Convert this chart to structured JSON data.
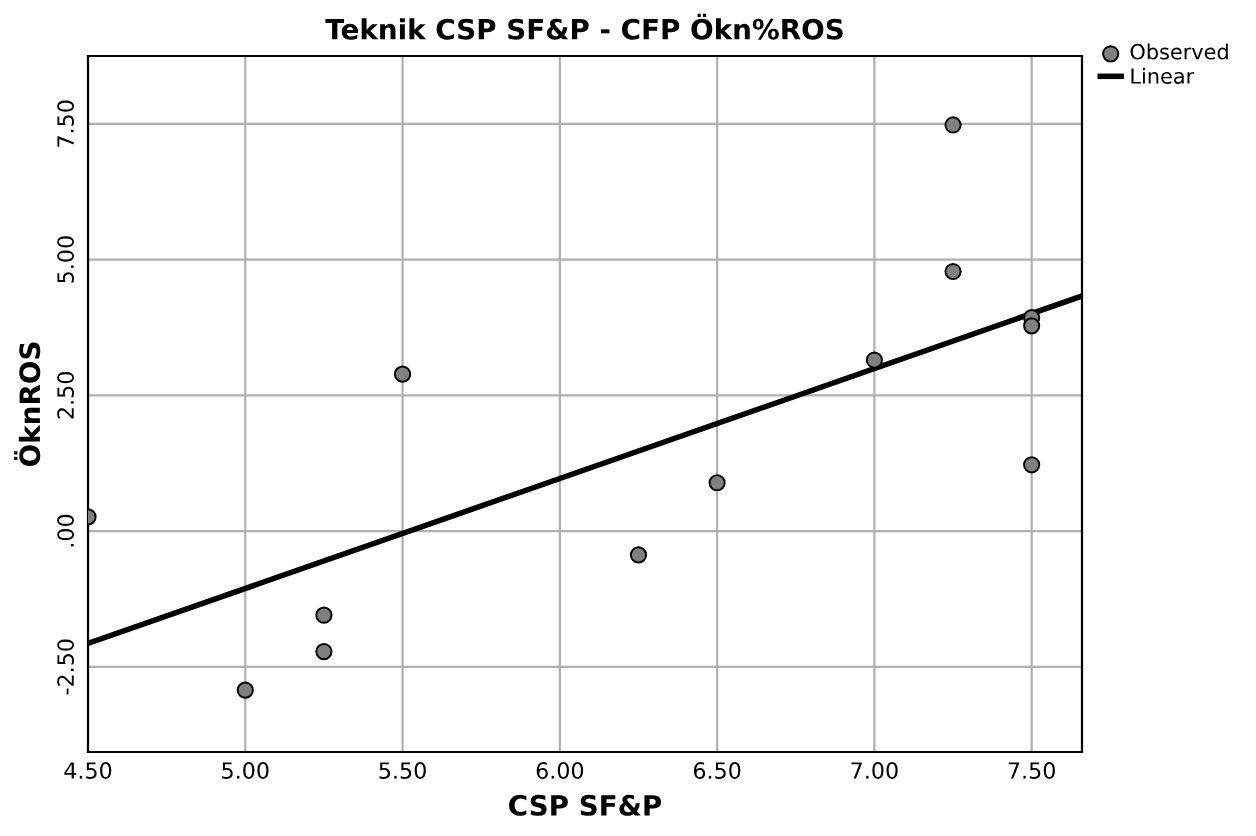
{
  "chart_data": {
    "type": "scatter",
    "title": "Teknik CSP SF&P - CFP Ökn%ROS",
    "xlabel": "CSP SF&P",
    "ylabel": "ÖknROS",
    "xlim": [
      4.5,
      7.66
    ],
    "ylim": [
      -4.07,
      8.75
    ],
    "xticks": [
      {
        "value": 4.5,
        "label": "4.50"
      },
      {
        "value": 5.0,
        "label": "5.00"
      },
      {
        "value": 5.5,
        "label": "5.50"
      },
      {
        "value": 6.0,
        "label": "6.00"
      },
      {
        "value": 6.5,
        "label": "6.50"
      },
      {
        "value": 7.0,
        "label": "7.00"
      },
      {
        "value": 7.5,
        "label": "7.50"
      }
    ],
    "yticks": [
      {
        "value": -2.5,
        "label": "-2.50"
      },
      {
        "value": 0,
        "label": ".00"
      },
      {
        "value": 2.5,
        "label": "2.50"
      },
      {
        "value": 5.0,
        "label": "5.00"
      },
      {
        "value": 7.5,
        "label": "7.50"
      }
    ],
    "grid": true,
    "legend": "top right",
    "series": [
      {
        "name": "Observed",
        "marker": "circle",
        "color": "#808080",
        "x": [
          4.5,
          5.0,
          5.25,
          5.25,
          5.5,
          6.25,
          6.5,
          7.0,
          7.25,
          7.25,
          7.5,
          7.5,
          7.5
        ],
        "values": [
          0.26,
          -2.93,
          -1.55,
          -2.22,
          2.89,
          -0.44,
          0.89,
          3.15,
          7.48,
          4.78,
          3.93,
          3.78,
          1.22
        ]
      },
      {
        "name": "Linear",
        "type": "line",
        "marker": "none",
        "color": "#000000",
        "x": [
          4.5,
          7.66
        ],
        "values": [
          -2.07,
          4.33
        ]
      }
    ]
  }
}
